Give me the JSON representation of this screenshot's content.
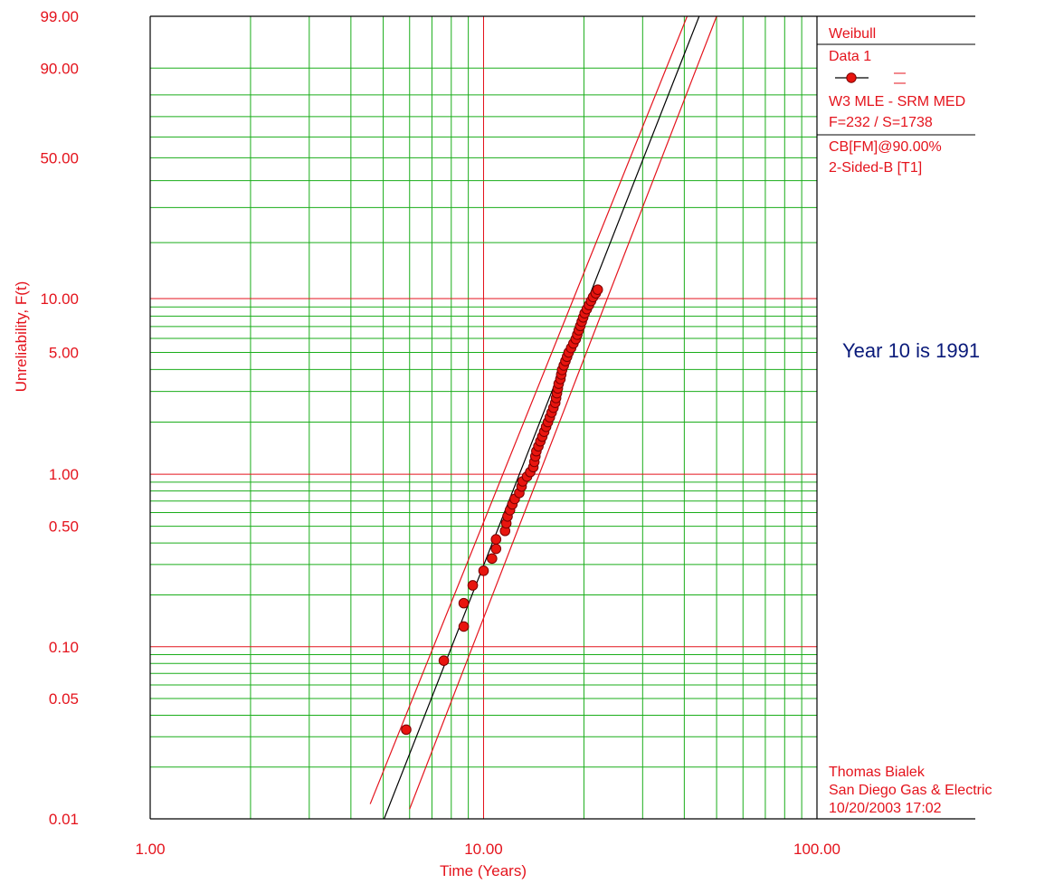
{
  "chart_data": {
    "type": "scatter",
    "subtype": "weibull-probability-plot",
    "xscale": "log",
    "yscale": "weibull",
    "xlim": [
      1,
      100
    ],
    "ylim": [
      0.01,
      99
    ],
    "xlabel": "Time (Years)",
    "ylabel": "Unreliability, F(t)",
    "x_tick_labels": [
      "1.00",
      "10.00",
      "100.00"
    ],
    "y_tick_labels": [
      "99.00",
      "90.00",
      "50.00",
      "10.00",
      "5.00",
      "1.00",
      "0.50",
      "0.10",
      "0.05",
      "0.01"
    ],
    "grid": true,
    "legend": {
      "position": "right",
      "distribution": "Weibull",
      "series_name": "Data 1",
      "fit_method": "W3 MLE - SRM MED",
      "counts": "F=232 / S=1738",
      "confidence": "CB[FM]@90.00%",
      "bound_type": "2-Sided-B [T1]"
    },
    "annotation": "Year 10 is 1991",
    "footer": {
      "author": "Thomas Bialek",
      "company": "San Diego Gas & Electric",
      "date": "10/20/2003 17:02"
    },
    "colors": {
      "frame": "#000000",
      "minor_grid": "#1aad1a",
      "major_grid": "#e4131c",
      "points": "#e8150f",
      "fit_line": "#000000",
      "bounds": "#e4131c",
      "text": "#e4131c",
      "annotation": "#0a1a7a"
    },
    "series": [
      {
        "name": "Data 1",
        "points": [
          {
            "x": 5.86,
            "y": 0.033
          },
          {
            "x": 7.6,
            "y": 0.083
          },
          {
            "x": 8.72,
            "y": 0.131
          },
          {
            "x": 8.72,
            "y": 0.179
          },
          {
            "x": 9.28,
            "y": 0.227
          },
          {
            "x": 10.0,
            "y": 0.276
          },
          {
            "x": 10.6,
            "y": 0.325
          },
          {
            "x": 10.9,
            "y": 0.37
          },
          {
            "x": 10.9,
            "y": 0.42
          },
          {
            "x": 11.6,
            "y": 0.47
          },
          {
            "x": 11.7,
            "y": 0.52
          },
          {
            "x": 11.8,
            "y": 0.57
          },
          {
            "x": 12.0,
            "y": 0.62
          },
          {
            "x": 12.2,
            "y": 0.67
          },
          {
            "x": 12.4,
            "y": 0.72
          },
          {
            "x": 12.8,
            "y": 0.78
          },
          {
            "x": 13.0,
            "y": 0.85
          },
          {
            "x": 13.1,
            "y": 0.91
          },
          {
            "x": 13.5,
            "y": 0.97
          },
          {
            "x": 13.8,
            "y": 1.03
          },
          {
            "x": 14.1,
            "y": 1.1
          },
          {
            "x": 14.2,
            "y": 1.18
          },
          {
            "x": 14.3,
            "y": 1.27
          },
          {
            "x": 14.4,
            "y": 1.36
          },
          {
            "x": 14.6,
            "y": 1.45
          },
          {
            "x": 14.8,
            "y": 1.55
          },
          {
            "x": 15.0,
            "y": 1.65
          },
          {
            "x": 15.2,
            "y": 1.76
          },
          {
            "x": 15.4,
            "y": 1.88
          },
          {
            "x": 15.6,
            "y": 2.0
          },
          {
            "x": 15.8,
            "y": 2.13
          },
          {
            "x": 16.0,
            "y": 2.27
          },
          {
            "x": 16.2,
            "y": 2.42
          },
          {
            "x": 16.4,
            "y": 2.58
          },
          {
            "x": 16.5,
            "y": 2.75
          },
          {
            "x": 16.6,
            "y": 2.93
          },
          {
            "x": 16.7,
            "y": 3.12
          },
          {
            "x": 16.8,
            "y": 3.32
          },
          {
            "x": 17.0,
            "y": 3.53
          },
          {
            "x": 17.1,
            "y": 3.75
          },
          {
            "x": 17.2,
            "y": 3.98
          },
          {
            "x": 17.4,
            "y": 4.22
          },
          {
            "x": 17.6,
            "y": 4.47
          },
          {
            "x": 17.8,
            "y": 4.73
          },
          {
            "x": 18.0,
            "y": 5.0
          },
          {
            "x": 18.3,
            "y": 5.3
          },
          {
            "x": 18.6,
            "y": 5.62
          },
          {
            "x": 18.9,
            "y": 5.95
          },
          {
            "x": 19.1,
            "y": 6.3
          },
          {
            "x": 19.3,
            "y": 6.67
          },
          {
            "x": 19.5,
            "y": 7.05
          },
          {
            "x": 19.7,
            "y": 7.45
          },
          {
            "x": 19.9,
            "y": 7.87
          },
          {
            "x": 20.1,
            "y": 8.3
          },
          {
            "x": 20.4,
            "y": 8.75
          },
          {
            "x": 20.7,
            "y": 9.22
          },
          {
            "x": 21.0,
            "y": 9.7
          },
          {
            "x": 21.3,
            "y": 10.2
          },
          {
            "x": 21.7,
            "y": 10.7
          },
          {
            "x": 22.0,
            "y": 11.2
          }
        ]
      }
    ],
    "fit_line": [
      {
        "x": 5.0,
        "y": 0.0097
      },
      {
        "x": 45.0,
        "y": 99.3
      }
    ],
    "upper_bound": [
      {
        "x": 4.57,
        "y": 0.0122
      },
      {
        "x": 42.0,
        "y": 99.5
      }
    ],
    "lower_bound": [
      {
        "x": 6.0,
        "y": 0.0114
      },
      {
        "x": 50.0,
        "y": 99.0
      }
    ]
  }
}
